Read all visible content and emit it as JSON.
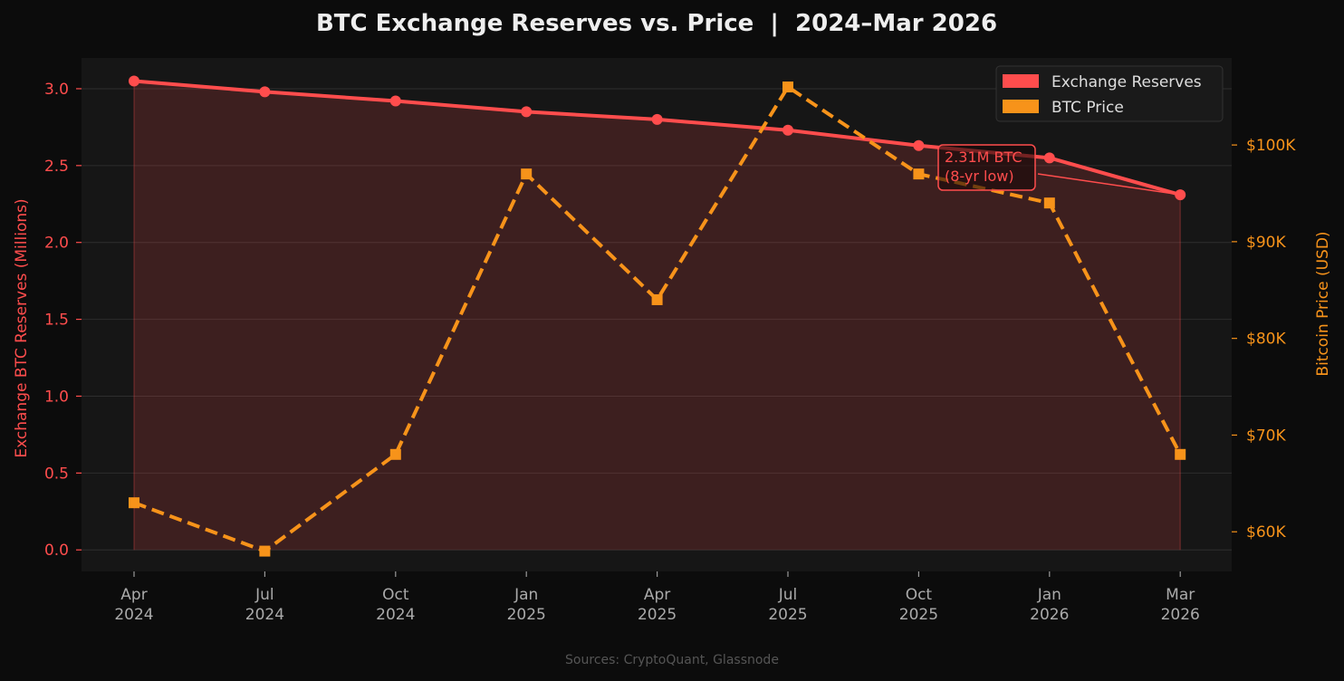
{
  "chart_data": {
    "type": "line",
    "title": "BTC Exchange Reserves vs. Price  |  2024–Mar 2026",
    "source": "Sources: CryptoQuant, Glassnode",
    "categories": [
      [
        "Apr",
        "2024"
      ],
      [
        "Jul",
        "2024"
      ],
      [
        "Oct",
        "2024"
      ],
      [
        "Jan",
        "2025"
      ],
      [
        "Apr",
        "2025"
      ],
      [
        "Jul",
        "2025"
      ],
      [
        "Oct",
        "2025"
      ],
      [
        "Jan",
        "2026"
      ],
      [
        "Mar",
        "2026"
      ]
    ],
    "y_left": {
      "label": "Exchange BTC Reserves (Millions)",
      "ylim": [
        -0.14,
        3.2
      ],
      "ticks": [
        0.0,
        0.5,
        1.0,
        1.5,
        2.0,
        2.5,
        3.0
      ],
      "tick_labels": [
        "0.0",
        "0.5",
        "1.0",
        "1.5",
        "2.0",
        "2.5",
        "3.0"
      ]
    },
    "y_right": {
      "label": "Bitcoin Price (USD)",
      "ylim": [
        55900,
        109000
      ],
      "ticks": [
        60000,
        70000,
        80000,
        90000,
        100000
      ],
      "tick_labels": [
        "$60K",
        "$70K",
        "$80K",
        "$90K",
        "$100K"
      ]
    },
    "series": [
      {
        "name": "Exchange Reserves",
        "axis": "left",
        "style": "solid",
        "marker": "circle",
        "fill": true,
        "color": "#ff4d4d",
        "values": [
          3.05,
          2.98,
          2.92,
          2.85,
          2.8,
          2.73,
          2.63,
          2.55,
          2.31
        ]
      },
      {
        "name": "BTC Price",
        "axis": "right",
        "style": "dashed",
        "marker": "square",
        "fill": false,
        "color": "#f7931a",
        "values": [
          63000,
          58000,
          68000,
          97000,
          84000,
          106000,
          97000,
          94000,
          68000
        ]
      }
    ],
    "annotation": {
      "lines": [
        "2.31M BTC",
        "(8-yr low)"
      ],
      "points_to": {
        "series": "Exchange Reserves",
        "index": 8
      }
    },
    "legend": {
      "placement": "top-right"
    },
    "grid": "horizontal"
  }
}
